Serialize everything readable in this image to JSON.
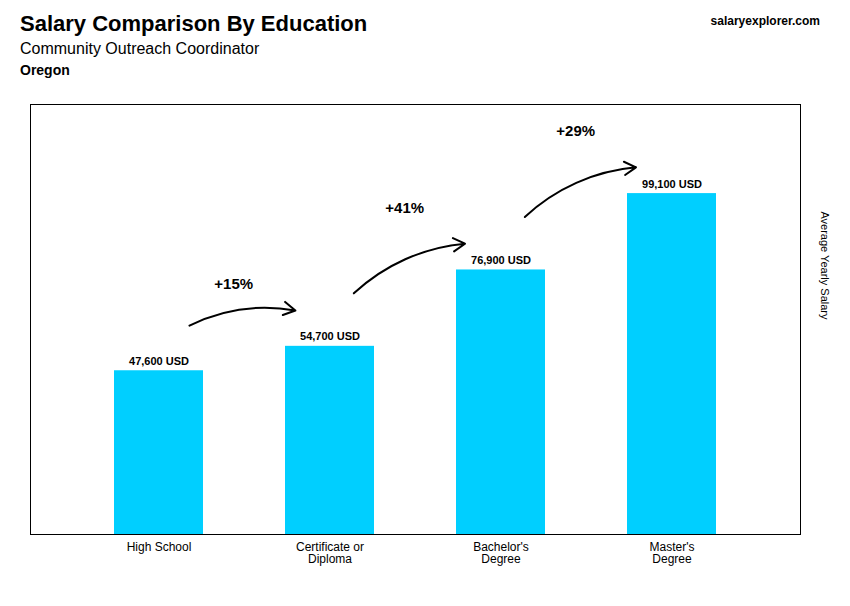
{
  "chart_data": {
    "type": "bar",
    "title": "Salary Comparison By Education",
    "subtitle": "Community Outreach Coordinator",
    "ylabel": "Average Yearly Salary",
    "categories": [
      "High School",
      "Certificate or\nDiploma",
      "Bachelor's\nDegree",
      "Master's\nDegree"
    ],
    "values": [
      47600,
      54700,
      76900,
      99100
    ],
    "value_labels": [
      "47,600 USD",
      "54,700 USD",
      "76,900 USD",
      "99,100 USD"
    ],
    "data_labels": true,
    "color": "#00cfff",
    "ylim": [
      0,
      125000
    ],
    "tick_labels": "x",
    "grid": false,
    "annotations": [
      {
        "text": "Oregon"
      },
      {
        "text": "salaryexplorer.com"
      },
      {
        "text": "+15%",
        "from": "High School",
        "to": "Certificate or\nDiploma"
      },
      {
        "text": "+41%",
        "from": "Certificate or\nDiploma",
        "to": "Bachelor's\nDegree"
      },
      {
        "text": "+29%",
        "from": "Bachelor's\nDegree",
        "to": "Master's\nDegree"
      }
    ]
  }
}
